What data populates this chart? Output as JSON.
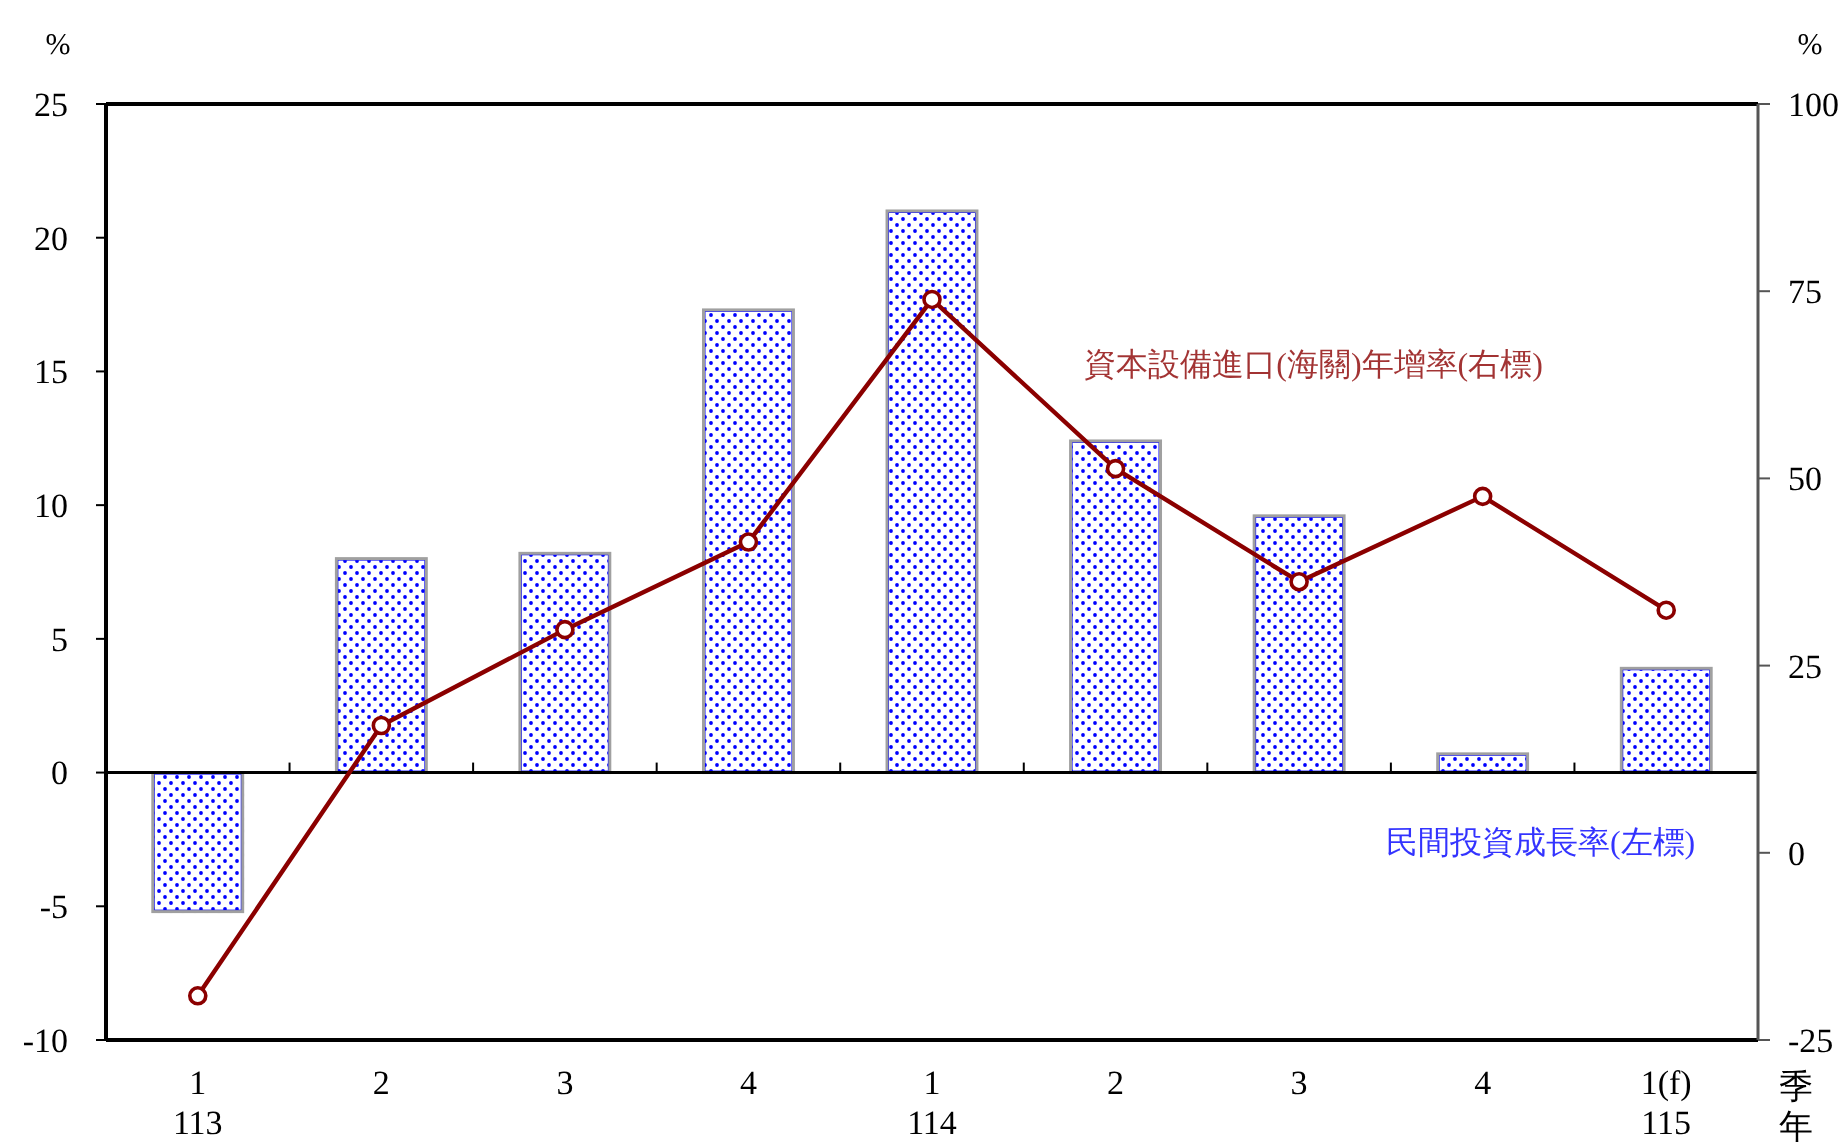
{
  "chart_data": {
    "type": "bar",
    "ylabel": "%",
    "y2label": "%",
    "xlabel": "季年",
    "categories": [
      "1\n113",
      "2",
      "3",
      "4",
      "1\n114",
      "2",
      "3",
      "4",
      "1(f)\n115"
    ],
    "series": [
      {
        "name": "民間投資成長率(左標)",
        "color": "#0000ff",
        "values": [
          -5.2,
          8.0,
          8.2,
          17.3,
          21.0,
          12.4,
          9.6,
          0.7,
          3.9
        ]
      },
      {
        "name": "資本設備進口(海關)年增率(右標)",
        "type": "line",
        "axis": "y2",
        "color": "#8b0000",
        "values": [
          -19.1,
          17.0,
          29.8,
          41.5,
          73.9,
          51.3,
          36.2,
          47.6,
          32.4
        ]
      }
    ],
    "ylim": [
      -10,
      25
    ],
    "yticks": [
      -10,
      -5,
      0,
      5,
      10,
      15,
      20,
      25
    ],
    "y2lim": [
      -25,
      100
    ],
    "y2ticks": [
      -25,
      0,
      25,
      50,
      75,
      100
    ],
    "marker": "circle"
  }
}
